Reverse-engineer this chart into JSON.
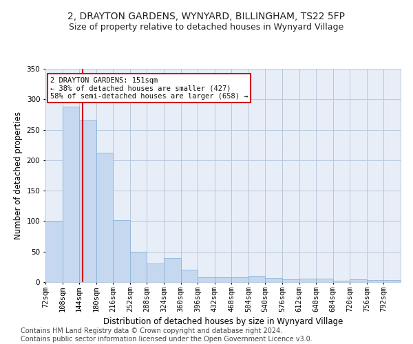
{
  "title": "2, DRAYTON GARDENS, WYNYARD, BILLINGHAM, TS22 5FP",
  "subtitle": "Size of property relative to detached houses in Wynyard Village",
  "xlabel": "Distribution of detached houses by size in Wynyard Village",
  "ylabel": "Number of detached properties",
  "bar_color": "#c5d8f0",
  "bar_edge_color": "#8ab4d8",
  "grid_color": "#b8c8dc",
  "bg_color": "#e8eef8",
  "vline_x": 151,
  "vline_color": "#cc0000",
  "annotation_text": "2 DRAYTON GARDENS: 151sqm\n← 38% of detached houses are smaller (427)\n58% of semi-detached houses are larger (658) →",
  "annotation_box_color": "#ffffff",
  "annotation_box_edge": "#cc0000",
  "footer_text": "Contains HM Land Registry data © Crown copyright and database right 2024.\nContains public sector information licensed under the Open Government Licence v3.0.",
  "bin_starts": [
    72,
    108,
    144,
    180,
    216,
    252,
    288,
    324,
    360,
    396,
    432,
    468,
    504,
    540,
    576,
    612,
    648,
    684,
    720,
    756,
    792
  ],
  "bin_width": 36,
  "counts": [
    100,
    288,
    265,
    212,
    102,
    50,
    30,
    40,
    20,
    8,
    8,
    8,
    10,
    7,
    4,
    6,
    6,
    2,
    4,
    3,
    3
  ],
  "ylim": [
    0,
    350
  ],
  "yticks": [
    0,
    50,
    100,
    150,
    200,
    250,
    300,
    350
  ],
  "title_fontsize": 10,
  "subtitle_fontsize": 9,
  "axis_label_fontsize": 8.5,
  "tick_fontsize": 7.5,
  "footer_fontsize": 7
}
